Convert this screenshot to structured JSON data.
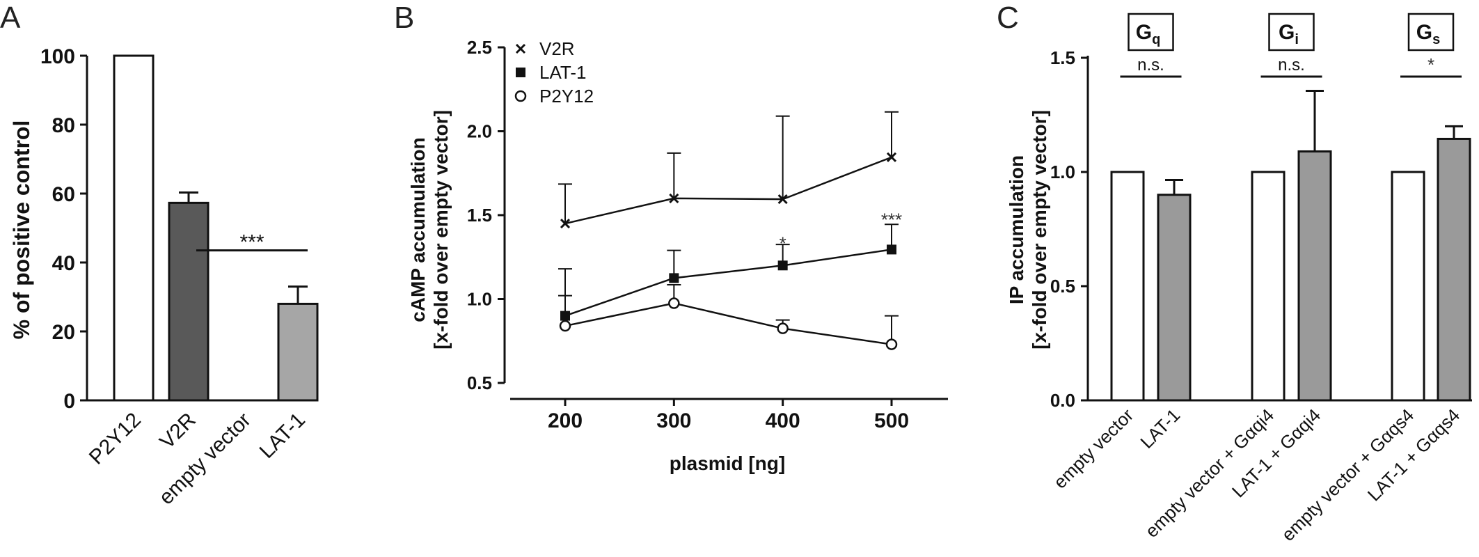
{
  "panels": {
    "a": "A",
    "b": "B",
    "c": "C"
  },
  "colors": {
    "white_bar": "#ffffff",
    "dark_gray_bar": "#595959",
    "light_gray_bar": "#a6a6a6",
    "mid_gray_bar": "#9a9a9a",
    "axis": "#111111"
  },
  "chart_data": [
    {
      "type": "bar",
      "panel": "A",
      "categories": [
        "P2Y12",
        "V2R",
        "empty vector",
        "LAT-1"
      ],
      "values": [
        100,
        57.3,
        0,
        28
      ],
      "errors": [
        0,
        3,
        0,
        5
      ],
      "bar_colors": [
        "#ffffff",
        "#595959",
        "#ffffff",
        "#a6a6a6"
      ],
      "ylabel": "% of positive control",
      "ylim": [
        0,
        100
      ],
      "yticks": [
        0,
        20,
        40,
        60,
        80,
        100
      ],
      "significance": [
        {
          "between": [
            "empty vector",
            "LAT-1"
          ],
          "label": "***",
          "y": 43.5
        }
      ]
    },
    {
      "type": "line",
      "panel": "B",
      "x": [
        200,
        300,
        400,
        500
      ],
      "xlabel": "plasmid [ng]",
      "ylabel": [
        "cAMP accumulation",
        "[x-fold over empty vector]"
      ],
      "ylim": [
        0.5,
        2.5
      ],
      "yticks": [
        0.5,
        1.0,
        1.5,
        2.0,
        2.5
      ],
      "ytick_labels": [
        "0.5",
        "1.0",
        "1.5",
        "2.0",
        "2.5"
      ],
      "legend_position": "top-left",
      "series": [
        {
          "name": "V2R",
          "marker": "x",
          "values": [
            1.45,
            1.6,
            1.595,
            1.845
          ],
          "errors": [
            0.235,
            0.27,
            0.495,
            0.27
          ]
        },
        {
          "name": "LAT-1",
          "marker": "square",
          "values": [
            0.9,
            1.125,
            1.2,
            1.295
          ],
          "errors": [
            0.28,
            0.165,
            0.125,
            0.15
          ]
        },
        {
          "name": "P2Y12",
          "marker": "circle",
          "values": [
            0.84,
            0.975,
            0.825,
            0.73
          ],
          "errors": [
            0.18,
            0.11,
            0.05,
            0.17
          ]
        }
      ],
      "annotations": [
        {
          "x": 400,
          "y": 1.37,
          "text": "*"
        },
        {
          "x": 500,
          "y": 1.51,
          "text": "***"
        }
      ]
    },
    {
      "type": "bar",
      "panel": "C",
      "categories": [
        "empty vector",
        "LAT-1",
        "empty vector + Gαqi4",
        "LAT-1 + Gαqi4",
        "empty vector + Gαqs4",
        "LAT-1 + Gαqs4"
      ],
      "values": [
        1.0,
        0.9,
        1.0,
        1.09,
        1.0,
        1.145
      ],
      "errors": [
        0,
        0.065,
        0,
        0.265,
        0,
        0.055
      ],
      "bar_colors": [
        "#ffffff",
        "#9a9a9a",
        "#ffffff",
        "#9a9a9a",
        "#ffffff",
        "#9a9a9a"
      ],
      "ylabel": [
        "IP accumulation",
        "[x-fold over empty vector]"
      ],
      "ylim": [
        0,
        1.5
      ],
      "yticks": [
        0,
        0.5,
        1.0,
        1.5
      ],
      "ytick_labels": [
        "0.0",
        "0.5",
        "1.0",
        "1.5"
      ],
      "groups": [
        {
          "label": "Gq",
          "main": "G",
          "sub": "q",
          "significance": "n.s."
        },
        {
          "label": "Gi",
          "main": "G",
          "sub": "i",
          "significance": "n.s."
        },
        {
          "label": "Gs",
          "main": "G",
          "sub": "s",
          "significance": "*"
        }
      ]
    }
  ]
}
